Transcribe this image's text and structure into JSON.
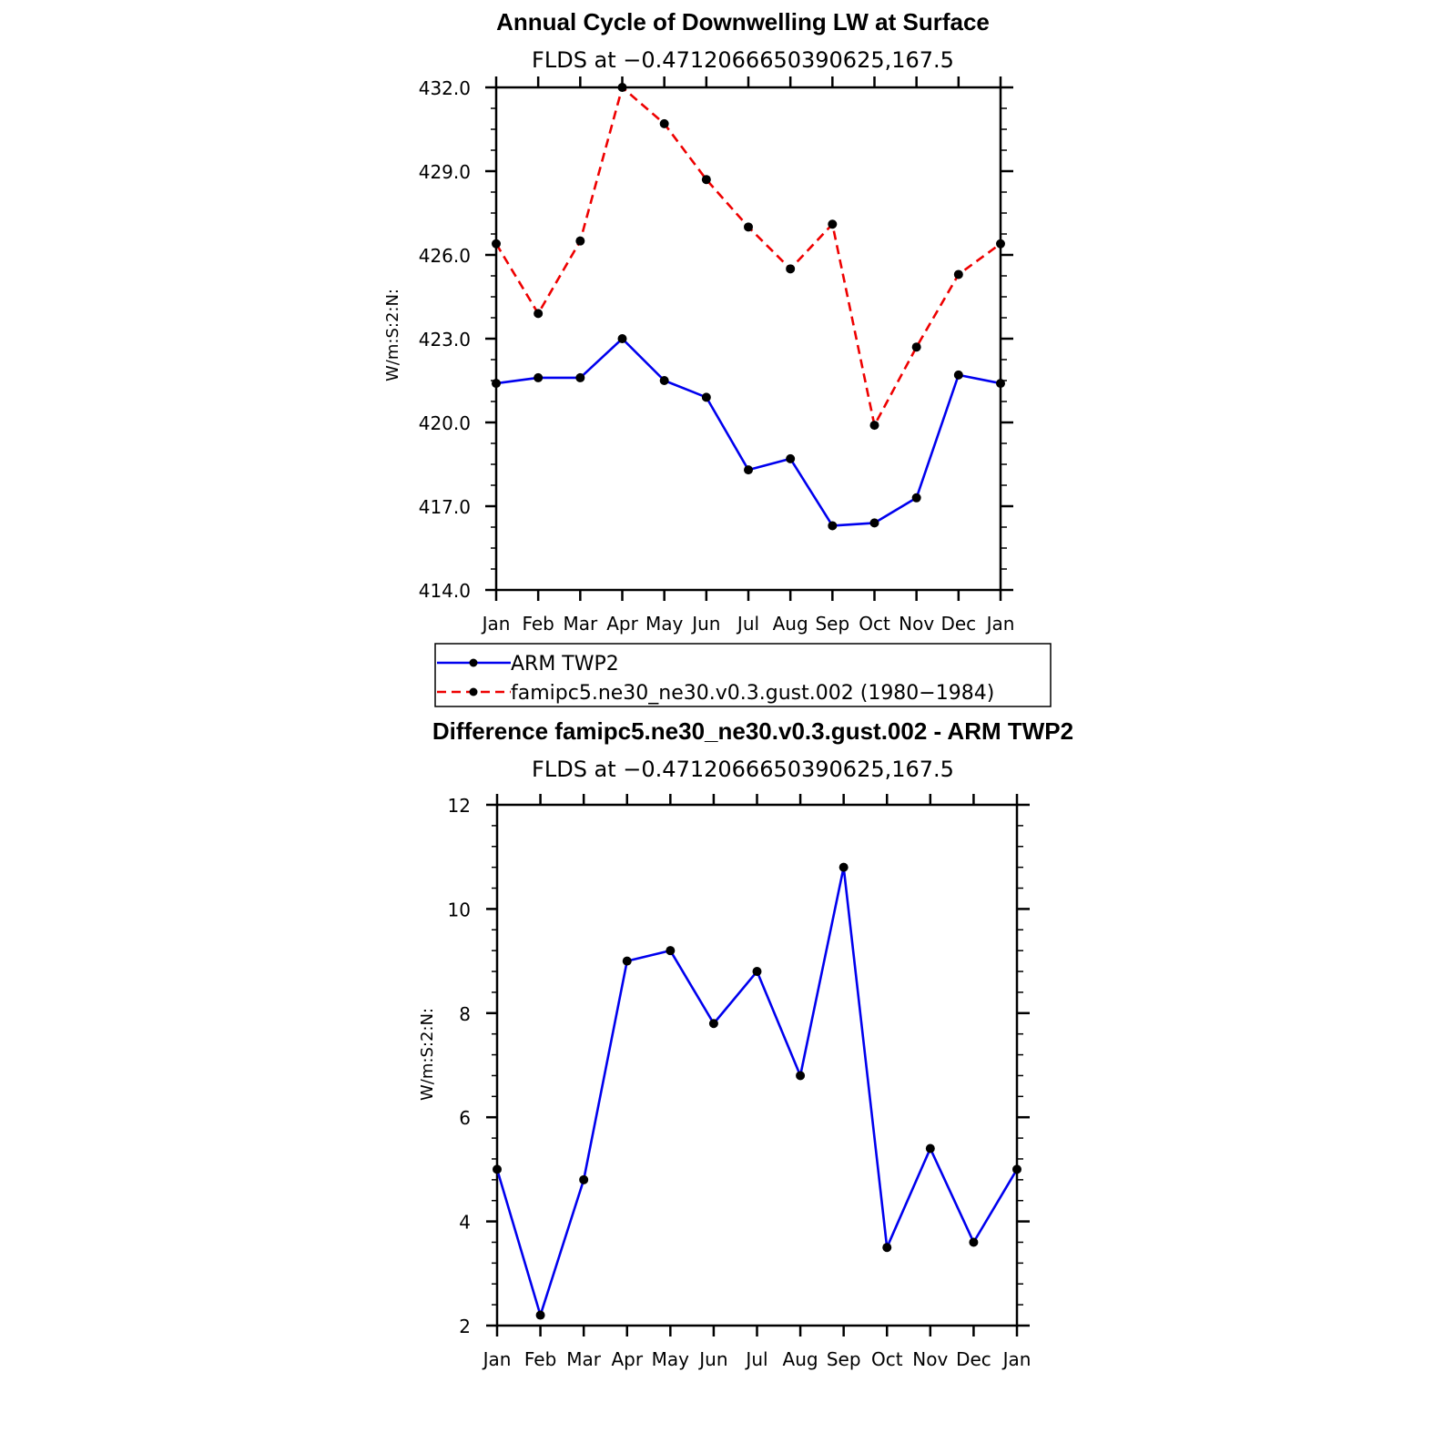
{
  "figure": {
    "colors": {
      "obs": "#0000ee",
      "model": "#ee0000",
      "axis": "#000000",
      "marker": "#000000"
    }
  },
  "chart_data": [
    {
      "type": "line",
      "title": "Annual Cycle of Downwelling LW at Surface",
      "subtitle": "FLDS at −0.4712066650390625,167.5",
      "ylabel": "W/m:S:2:N:",
      "xlabel": "",
      "categories": [
        "Jan",
        "Feb",
        "Mar",
        "Apr",
        "May",
        "Jun",
        "Jul",
        "Aug",
        "Sep",
        "Oct",
        "Nov",
        "Dec",
        "Jan"
      ],
      "ylim": [
        414.0,
        432.0
      ],
      "yticks": [
        "414.0",
        "417.0",
        "420.0",
        "423.0",
        "426.0",
        "429.0",
        "432.0"
      ],
      "grid": false,
      "legend_position": "below",
      "series": [
        {
          "name": "ARM TWP2",
          "style": "solid",
          "color": "#0000ee",
          "values": [
            421.4,
            421.6,
            421.6,
            423.0,
            421.5,
            420.9,
            418.3,
            418.7,
            416.3,
            416.4,
            417.3,
            421.7,
            421.4
          ]
        },
        {
          "name": "famipc5.ne30_ne30.v0.3.gust.002 (1980−1984)",
          "style": "dashed",
          "color": "#ee0000",
          "values": [
            426.4,
            423.9,
            426.5,
            432.0,
            430.7,
            428.7,
            427.0,
            425.5,
            427.1,
            419.9,
            422.7,
            425.3,
            426.4
          ]
        }
      ]
    },
    {
      "type": "line",
      "title": "Difference famipc5.ne30_ne30.v0.3.gust.002 - ARM TWP2",
      "subtitle": "FLDS at −0.4712066650390625,167.5",
      "ylabel": "W/m:S:2:N:",
      "xlabel": "",
      "categories": [
        "Jan",
        "Feb",
        "Mar",
        "Apr",
        "May",
        "Jun",
        "Jul",
        "Aug",
        "Sep",
        "Oct",
        "Nov",
        "Dec",
        "Jan"
      ],
      "ylim": [
        2,
        12
      ],
      "yticks": [
        "2",
        "4",
        "6",
        "8",
        "10",
        "12"
      ],
      "grid": false,
      "series": [
        {
          "style": "solid",
          "color": "#0000ee",
          "values": [
            5.0,
            2.2,
            4.8,
            9.0,
            9.2,
            7.8,
            8.8,
            6.8,
            10.8,
            3.5,
            5.4,
            3.6,
            5.0
          ]
        }
      ]
    }
  ]
}
